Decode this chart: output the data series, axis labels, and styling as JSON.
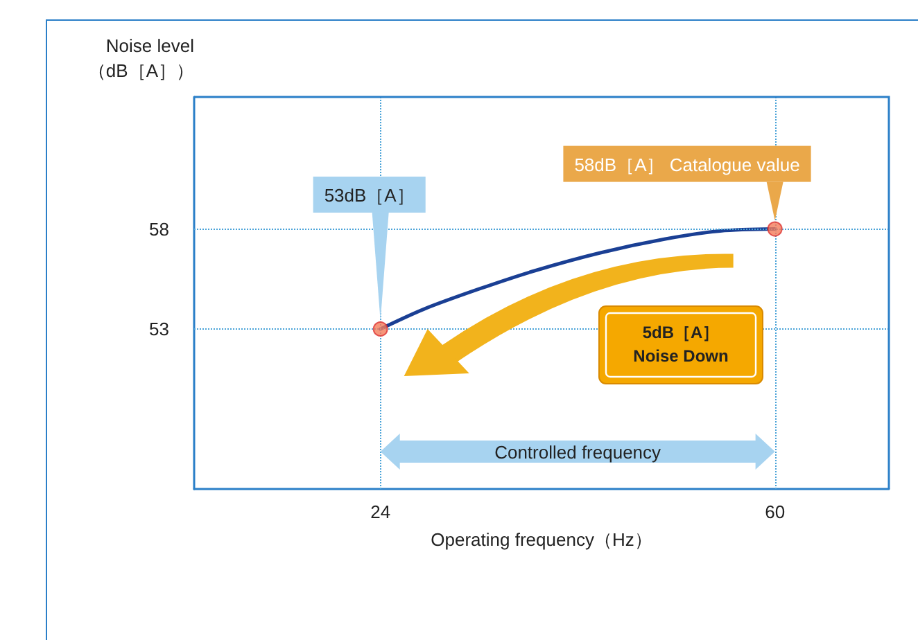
{
  "chart_data": {
    "type": "line",
    "xlabel": "Operating frequency（Hz）",
    "ylabel": "Noise level\n（dB［A］）",
    "xlim": [
      7,
      70.4
    ],
    "xticks": [
      24,
      60
    ],
    "ylim": [
      45,
      64.6
    ],
    "yticks": [
      53,
      58
    ],
    "grid": false,
    "series": [
      {
        "type": "line",
        "color": "#1a3f94",
        "x": [
          24,
          28,
          33,
          38,
          44,
          50,
          55,
          60
        ],
        "values": [
          53,
          54,
          55,
          55.9,
          56.8,
          57.5,
          57.9,
          58
        ],
        "marker": "none"
      },
      {
        "type": "scatter",
        "color": "#f47c5a",
        "x": [
          24,
          60
        ],
        "values": [
          53,
          58
        ],
        "marker": "circle"
      }
    ],
    "ref_lines": [
      {
        "axis": "y",
        "value": 58,
        "color": "#4aa3d8",
        "line_style": "dotted"
      },
      {
        "axis": "y",
        "value": 53,
        "color": "#4aa3d8",
        "line_style": "dotted"
      },
      {
        "axis": "x",
        "value": 24,
        "color": "#4aa3d8",
        "line_style": "dotted"
      },
      {
        "axis": "x",
        "value": 60,
        "color": "#4aa3d8",
        "line_style": "dotted"
      }
    ],
    "annotations": [
      {
        "text": "53dB［A］",
        "x": 24,
        "y": 53
      },
      {
        "text": "58dB［A］ Catalogue value",
        "x": 60,
        "y": 58
      },
      "5dB［A］\nNoise Down",
      "Controlled frequency"
    ]
  }
}
